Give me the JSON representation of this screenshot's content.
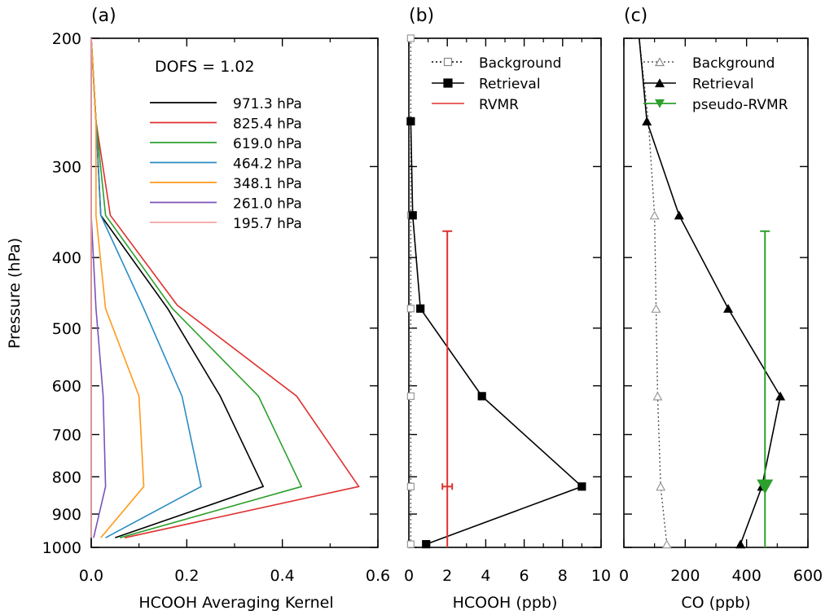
{
  "chart_data": [
    {
      "panel": "(a)",
      "type": "line",
      "xlabel": "HCOOH Averaging Kernel",
      "ylabel": "Pressure (hPa)",
      "xlim": [
        0.0,
        0.6
      ],
      "ylim": [
        1000,
        200
      ],
      "yscale": "log",
      "xticks": [
        "0.0",
        "0.2",
        "0.4",
        "0.6"
      ],
      "yticks": [
        "200",
        "300",
        "400",
        "500",
        "600",
        "700",
        "800",
        "900",
        "1000"
      ],
      "annotation": "DOFS = 1.02",
      "legend_position": "top",
      "series": [
        {
          "name": "971.3 hPa",
          "color": "#000000",
          "points": [
            [
              0.0,
              200
            ],
            [
              0.01,
              260
            ],
            [
              0.02,
              350
            ],
            [
              0.16,
              470
            ],
            [
              0.27,
              620
            ],
            [
              0.36,
              825
            ],
            [
              0.05,
              970
            ]
          ]
        },
        {
          "name": "825.4 hPa",
          "color": "#e03030",
          "points": [
            [
              0.0,
              200
            ],
            [
              0.01,
              260
            ],
            [
              0.04,
              350
            ],
            [
              0.18,
              465
            ],
            [
              0.43,
              620
            ],
            [
              0.56,
              825
            ],
            [
              0.07,
              970
            ]
          ]
        },
        {
          "name": "619.0 hPa",
          "color": "#2ca02c",
          "points": [
            [
              0.0,
              200
            ],
            [
              0.01,
              260
            ],
            [
              0.03,
              350
            ],
            [
              0.17,
              470
            ],
            [
              0.35,
              620
            ],
            [
              0.44,
              825
            ],
            [
              0.06,
              970
            ]
          ]
        },
        {
          "name": "464.2 hPa",
          "color": "#2b8cc4",
          "points": [
            [
              0.0,
              200
            ],
            [
              0.01,
              260
            ],
            [
              0.02,
              350
            ],
            [
              0.11,
              470
            ],
            [
              0.19,
              620
            ],
            [
              0.23,
              825
            ],
            [
              0.03,
              970
            ]
          ]
        },
        {
          "name": "348.1 hPa",
          "color": "#ff9a1a",
          "points": [
            [
              0.0,
              200
            ],
            [
              0.01,
              260
            ],
            [
              0.01,
              350
            ],
            [
              0.03,
              470
            ],
            [
              0.1,
              620
            ],
            [
              0.11,
              825
            ],
            [
              0.02,
              970
            ]
          ]
        },
        {
          "name": "261.0 hPa",
          "color": "#7b52b9",
          "points": [
            [
              0.0,
              200
            ],
            [
              0.0,
              260
            ],
            [
              0.0,
              350
            ],
            [
              0.01,
              470
            ],
            [
              0.025,
              620
            ],
            [
              0.03,
              825
            ],
            [
              0.005,
              970
            ]
          ]
        },
        {
          "name": "195.7 hPa",
          "color": "#f4a3a3",
          "points": [
            [
              0.0,
              200
            ],
            [
              0.0,
              260
            ],
            [
              0.0,
              350
            ],
            [
              0.0,
              470
            ],
            [
              0.0,
              620
            ],
            [
              0.0,
              825
            ],
            [
              0.0,
              970
            ]
          ]
        }
      ]
    },
    {
      "panel": "(b)",
      "type": "line",
      "xlabel": "HCOOH (ppb)",
      "xlim": [
        0,
        10
      ],
      "ylim": [
        1000,
        200
      ],
      "yscale": "log",
      "xticks": [
        "0",
        "2",
        "4",
        "6",
        "8",
        "10"
      ],
      "legend_position": "top",
      "series": [
        {
          "name": "Background",
          "style": "dotted",
          "marker": "open-square",
          "color": "#888888",
          "points": [
            [
              0.1,
              200
            ],
            [
              0.1,
              260
            ],
            [
              0.1,
              350
            ],
            [
              0.1,
              470
            ],
            [
              0.1,
              620
            ],
            [
              0.1,
              825
            ],
            [
              0.1,
              990
            ]
          ]
        },
        {
          "name": "Retrieval",
          "style": "solid",
          "marker": "filled-square",
          "color": "#000000",
          "points": [
            [
              0.1,
              260
            ],
            [
              0.2,
              350
            ],
            [
              0.6,
              470
            ],
            [
              3.8,
              620
            ],
            [
              9.0,
              825
            ],
            [
              0.9,
              990
            ]
          ]
        },
        {
          "name": "RVMR",
          "style": "errorbar",
          "color": "#e03030",
          "x": 2.0,
          "p_top": 368,
          "p_bottom": 1000,
          "mid_marker_p": 825
        }
      ]
    },
    {
      "panel": "(c)",
      "type": "line",
      "xlabel": "CO (ppb)",
      "xlim": [
        0,
        600
      ],
      "ylim": [
        1000,
        200
      ],
      "yscale": "log",
      "xticks": [
        "0",
        "200",
        "400",
        "600"
      ],
      "legend_position": "top",
      "series": [
        {
          "name": "Background",
          "style": "dotted",
          "marker": "open-triangle",
          "color": "#888888",
          "points": [
            [
              50,
              200
            ],
            [
              80,
              260
            ],
            [
              100,
              350
            ],
            [
              105,
              470
            ],
            [
              110,
              620
            ],
            [
              120,
              825
            ],
            [
              140,
              990
            ]
          ]
        },
        {
          "name": "Retrieval",
          "style": "solid",
          "marker": "filled-triangle",
          "color": "#000000",
          "points": [
            [
              50,
              200
            ],
            [
              75,
              260
            ],
            [
              180,
              350
            ],
            [
              340,
              470
            ],
            [
              510,
              620
            ],
            [
              450,
              825
            ],
            [
              380,
              990
            ]
          ]
        },
        {
          "name": "pseudo-RVMR",
          "style": "errorbar",
          "marker": "filled-down-triangle",
          "color": "#2ca02c",
          "x": 460,
          "p_top": 368,
          "p_bottom": 1000,
          "marker_p": 825
        }
      ]
    }
  ]
}
